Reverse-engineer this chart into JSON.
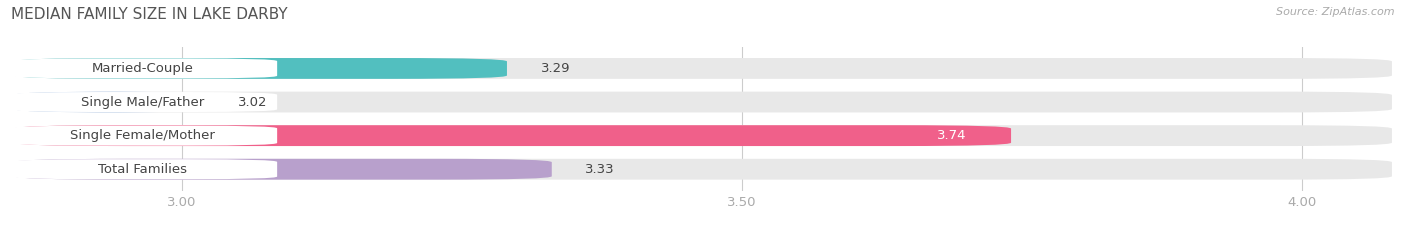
{
  "title": "MEDIAN FAMILY SIZE IN LAKE DARBY",
  "source": "Source: ZipAtlas.com",
  "categories": [
    "Married-Couple",
    "Single Male/Father",
    "Single Female/Mother",
    "Total Families"
  ],
  "values": [
    3.29,
    3.02,
    3.74,
    3.33
  ],
  "bar_colors": [
    "#52bfbf",
    "#aac4e8",
    "#f0608a",
    "#b8a0cc"
  ],
  "bar_bg_color": "#e8e8e8",
  "xlim": [
    2.85,
    4.08
  ],
  "xticks": [
    3.0,
    3.5,
    4.0
  ],
  "bar_height": 0.62,
  "label_fontsize": 9.5,
  "title_fontsize": 11,
  "value_fontsize": 9.5,
  "source_fontsize": 8,
  "bg_color": "#ffffff",
  "bar_label_color": "#444444",
  "value_label_inside_color": "#ffffff",
  "tick_label_color": "#aaaaaa",
  "title_color": "#555555",
  "grid_color": "#cccccc"
}
